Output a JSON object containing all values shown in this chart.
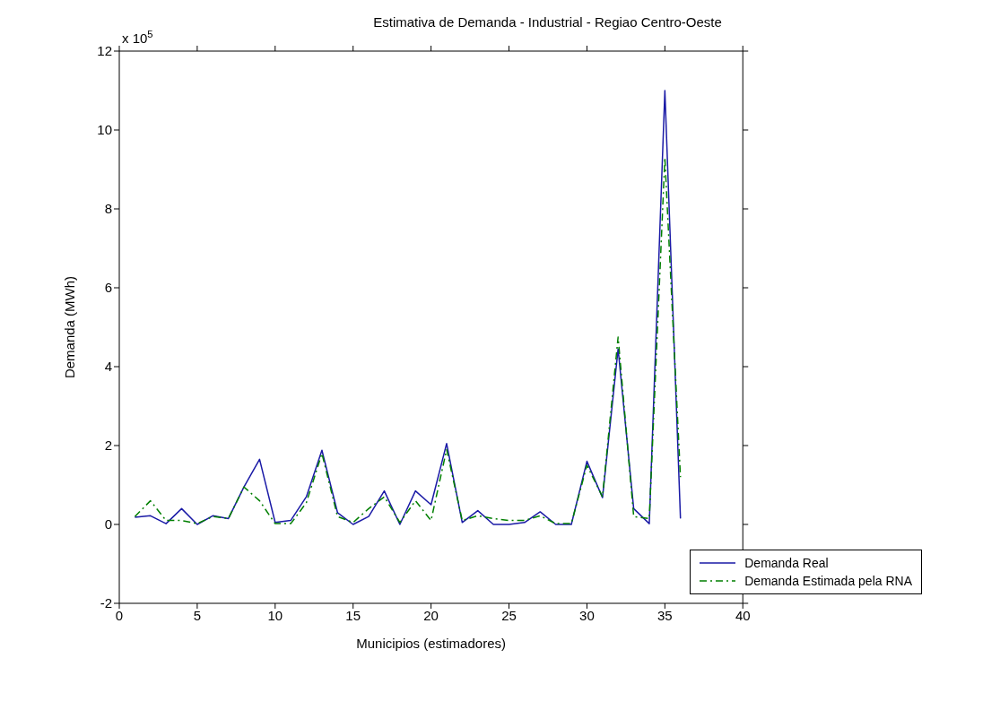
{
  "chart_data": {
    "type": "line",
    "title": "Estimativa de Demanda - Industrial - Regiao Centro-Oeste",
    "xlabel": "Municipios (estimadores)",
    "ylabel": "Demanda (MWh)",
    "annotations": [
      "x 10$^{5}$"
    ],
    "x": [
      1,
      2,
      3,
      4,
      5,
      6,
      7,
      8,
      9,
      10,
      11,
      12,
      13,
      14,
      15,
      16,
      17,
      18,
      19,
      20,
      21,
      22,
      23,
      24,
      25,
      26,
      27,
      28,
      29,
      30,
      31,
      32,
      33,
      34,
      35,
      36
    ],
    "series": [
      {
        "name": "Demanda Real",
        "color": "#1a1aa6",
        "line_style": "solid",
        "values": [
          0.18,
          0.22,
          0.02,
          0.4,
          0,
          0.22,
          0.15,
          0.95,
          1.65,
          0.05,
          0.1,
          0.7,
          1.88,
          0.3,
          0,
          0.2,
          0.85,
          0,
          0.85,
          0.5,
          2.05,
          0.05,
          0.35,
          0,
          0,
          0.05,
          0.32,
          0,
          0,
          1.6,
          0.68,
          4.45,
          0.4,
          0.02,
          11.0,
          0.15
        ]
      },
      {
        "name": "Demanda Estimada pela RNA",
        "color": "#007f00",
        "line_style": "dashed",
        "values": [
          0.2,
          0.6,
          0.1,
          0.1,
          0.02,
          0.2,
          0.15,
          0.95,
          0.6,
          0.02,
          0.02,
          0.55,
          1.8,
          0.2,
          0.05,
          0.4,
          0.7,
          0.05,
          0.6,
          0.1,
          1.9,
          0.1,
          0.22,
          0.15,
          0.1,
          0.1,
          0.22,
          0.02,
          0.02,
          1.5,
          0.7,
          4.75,
          0.2,
          0.15,
          9.3,
          1.2
        ]
      }
    ],
    "xlim": [
      0,
      40
    ],
    "xticks": [
      0,
      5,
      10,
      15,
      20,
      25,
      30,
      35,
      40
    ],
    "ylim": [
      -2,
      12
    ],
    "yticks": [
      -2,
      0,
      2,
      4,
      6,
      8,
      10,
      12
    ],
    "grid": false,
    "legend": "bottom right",
    "marker": "none"
  }
}
